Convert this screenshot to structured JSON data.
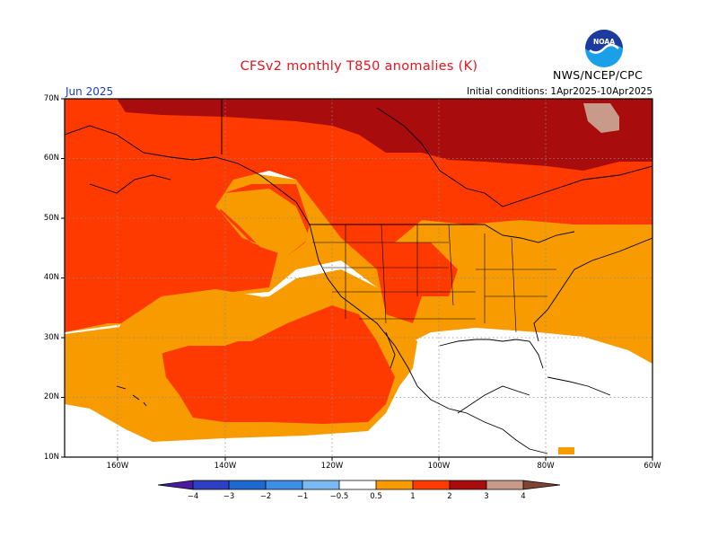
{
  "title": "CFSv2 monthly T850 anomalies (K)",
  "agency": "NWS/NCEP/CPC",
  "forecast_month": "Jun 2025",
  "initial_conditions": "Initial conditions: 1Apr2025-10Apr2025",
  "logo": {
    "text": "NOAA",
    "icon": "noaa-logo-icon"
  },
  "map": {
    "latitude_labels": [
      "70N",
      "60N",
      "50N",
      "40N",
      "30N",
      "20N",
      "10N"
    ],
    "longitude_labels": [
      "160W",
      "140W",
      "120W",
      "100W",
      "80W",
      "60W"
    ],
    "colors": {
      "lt_-4": "#4a1b9e",
      "-4_-3": "#2e3fc4",
      "-3_-2": "#1e68d2",
      "-2_-1": "#3d8ee6",
      "-1_-0.5": "#7cb9f2",
      "0.5_1": "#f79b00",
      "1_2": "#ff3a00",
      "2_3": "#a80c0c",
      "3_4": "#c79a89",
      "gt_4": "#7f4434"
    }
  },
  "colorbar": {
    "labels": [
      "-4",
      "-3",
      "-2",
      "-1",
      "-0.5",
      "0.5",
      "1",
      "2",
      "3",
      "4"
    ],
    "display_labels": [
      "−4",
      "−3",
      "−2",
      "−1",
      "−0.5",
      "0.5",
      "1",
      "2",
      "3",
      "4"
    ]
  }
}
